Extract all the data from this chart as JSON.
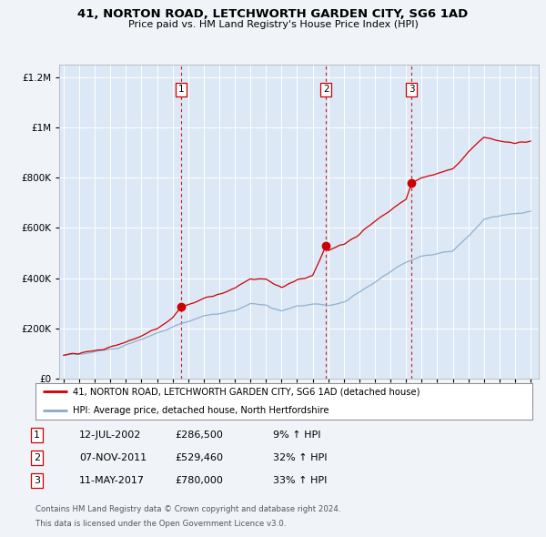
{
  "title": "41, NORTON ROAD, LETCHWORTH GARDEN CITY, SG6 1AD",
  "subtitle": "Price paid vs. HM Land Registry's House Price Index (HPI)",
  "legend_line1": "41, NORTON ROAD, LETCHWORTH GARDEN CITY, SG6 1AD (detached house)",
  "legend_line2": "HPI: Average price, detached house, North Hertfordshire",
  "sale_dates_label": [
    "12-JUL-2002",
    "07-NOV-2011",
    "11-MAY-2017"
  ],
  "sale_prices": [
    286500,
    529460,
    780000
  ],
  "sale_pct": [
    "9% ↑ HPI",
    "32% ↑ HPI",
    "33% ↑ HPI"
  ],
  "sale_years": [
    2002.53,
    2011.85,
    2017.36
  ],
  "footer1": "Contains HM Land Registry data © Crown copyright and database right 2024.",
  "footer2": "This data is licensed under the Open Government Licence v3.0.",
  "bg_color": "#f0f4f8",
  "plot_bg_color": "#dce8f5",
  "red_color": "#cc0000",
  "blue_color": "#88aacc",
  "grid_color": "#ffffff",
  "dashed_color": "#cc0000",
  "ylim": [
    0,
    1250000
  ],
  "xlim": [
    1994.7,
    2025.5
  ],
  "hpi_anchors_years": [
    1995,
    1996,
    1997,
    1998,
    1999,
    2000,
    2001,
    2002,
    2003,
    2004,
    2005,
    2006,
    2007,
    2008,
    2009,
    2010,
    2011,
    2012,
    2013,
    2014,
    2015,
    2016,
    2017,
    2018,
    2019,
    2020,
    2021,
    2022,
    2023,
    2024,
    2025
  ],
  "hpi_anchors_vals": [
    92000,
    97000,
    105000,
    118000,
    135000,
    158000,
    182000,
    205000,
    228000,
    250000,
    258000,
    272000,
    298000,
    292000,
    268000,
    288000,
    298000,
    290000,
    305000,
    345000,
    385000,
    425000,
    465000,
    488000,
    498000,
    508000,
    565000,
    635000,
    648000,
    655000,
    665000
  ],
  "red_anchors_years": [
    1995,
    1996,
    1997,
    1998,
    1999,
    2000,
    2001,
    2002,
    2002.53,
    2003,
    2004,
    2005,
    2006,
    2007,
    2008,
    2009,
    2010,
    2011,
    2011.85,
    2012,
    2013,
    2014,
    2015,
    2016,
    2017,
    2017.36,
    2018,
    2019,
    2020,
    2021,
    2022,
    2023,
    2024,
    2025
  ],
  "red_anchors_vals": [
    95000,
    100000,
    110000,
    125000,
    145000,
    170000,
    198000,
    240000,
    286500,
    295000,
    318000,
    335000,
    360000,
    398000,
    395000,
    362000,
    392000,
    408000,
    529460,
    510000,
    535000,
    575000,
    625000,
    668000,
    715000,
    780000,
    800000,
    815000,
    835000,
    900000,
    960000,
    945000,
    935000,
    945000
  ]
}
